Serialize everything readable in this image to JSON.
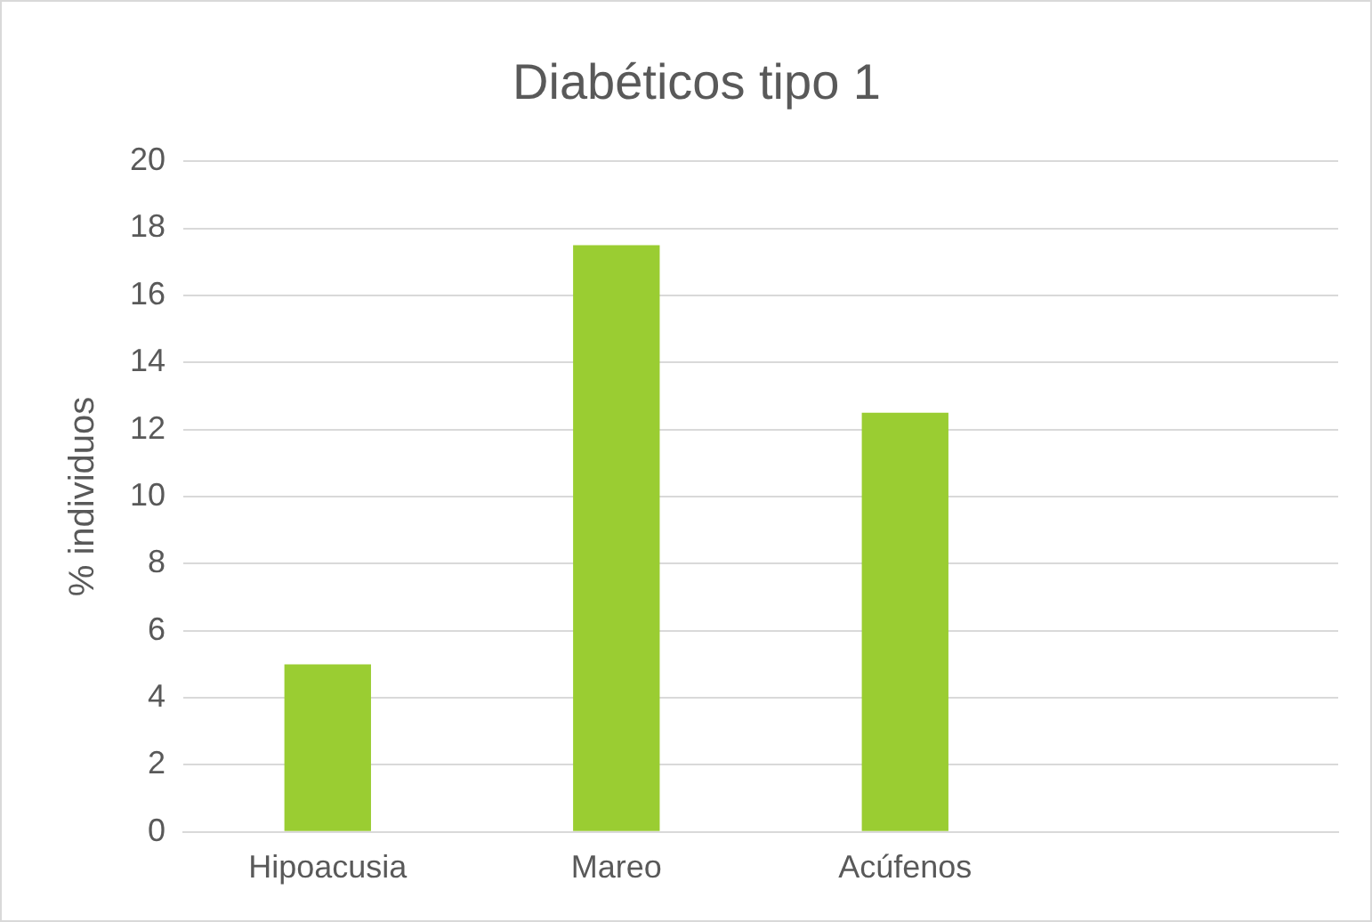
{
  "chart_data": {
    "type": "bar",
    "title": "Diabéticos tipo 1",
    "ylabel": "% individuos",
    "categories": [
      "Hipoacusia",
      "Mareo",
      "Acúfenos",
      null
    ],
    "values": [
      5,
      17.5,
      12.5,
      null
    ],
    "color": "#9acd32",
    "ylim": [
      0,
      20
    ],
    "yticks": [
      0,
      2,
      4,
      6,
      8,
      10,
      12,
      14,
      16,
      18,
      20
    ],
    "grid": "y",
    "legend": false
  }
}
